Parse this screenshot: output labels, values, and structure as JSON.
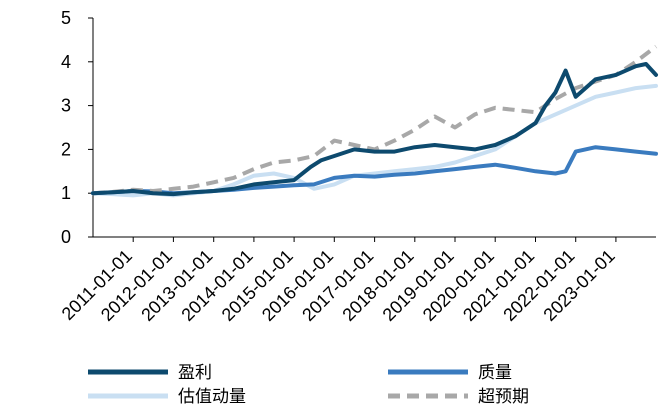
{
  "chart_data": {
    "type": "line",
    "title": "",
    "xlabel": "",
    "ylabel": "",
    "ylim": [
      0,
      5
    ],
    "yticks": [
      0,
      1,
      2,
      3,
      4,
      5
    ],
    "xticks": [
      "2011-01-01",
      "2012-01-01",
      "2013-01-01",
      "2014-01-01",
      "2015-01-01",
      "2016-01-01",
      "2017-01-01",
      "2018-01-01",
      "2019-01-01",
      "2020-01-01",
      "2021-01-01",
      "2022-01-01",
      "2023-01-01"
    ],
    "xlim": [
      "2010-01-01",
      "2023-12-31"
    ],
    "grid": false,
    "legend_position": "bottom",
    "series": [
      {
        "name": "盈利",
        "color": "#0d4a6e",
        "dash": "solid",
        "x": [
          "2010-01-01",
          "2010-07-01",
          "2011-01-01",
          "2011-07-01",
          "2012-01-01",
          "2012-07-01",
          "2013-01-01",
          "2013-07-01",
          "2014-01-01",
          "2014-07-01",
          "2015-01-01",
          "2015-06-01",
          "2015-09-01",
          "2016-01-01",
          "2016-07-01",
          "2017-01-01",
          "2017-07-01",
          "2018-01-01",
          "2018-07-01",
          "2019-01-01",
          "2019-07-01",
          "2020-01-01",
          "2020-07-01",
          "2021-01-01",
          "2021-04-01",
          "2021-07-01",
          "2021-10-01",
          "2022-01-01",
          "2022-07-01",
          "2023-01-01",
          "2023-07-01",
          "2023-10-01",
          "2023-12-31"
        ],
        "values": [
          1.0,
          1.02,
          1.05,
          1.0,
          0.98,
          1.02,
          1.05,
          1.1,
          1.2,
          1.25,
          1.3,
          1.6,
          1.75,
          1.85,
          2.0,
          1.95,
          1.95,
          2.05,
          2.1,
          2.05,
          2.0,
          2.1,
          2.3,
          2.6,
          3.0,
          3.3,
          3.8,
          3.2,
          3.6,
          3.7,
          3.9,
          3.95,
          3.7
        ]
      },
      {
        "name": "质量",
        "color": "#3a7bbf",
        "dash": "solid",
        "x": [
          "2010-01-01",
          "2010-07-01",
          "2011-01-01",
          "2011-07-01",
          "2012-01-01",
          "2012-07-01",
          "2013-01-01",
          "2013-07-01",
          "2014-01-01",
          "2014-07-01",
          "2015-01-01",
          "2015-07-01",
          "2016-01-01",
          "2016-07-01",
          "2017-01-01",
          "2017-07-01",
          "2018-01-01",
          "2018-07-01",
          "2019-01-01",
          "2019-07-01",
          "2020-01-01",
          "2020-07-01",
          "2021-01-01",
          "2021-07-01",
          "2021-10-01",
          "2022-01-01",
          "2022-07-01",
          "2023-01-01",
          "2023-07-01",
          "2023-12-31"
        ],
        "values": [
          1.0,
          1.02,
          1.05,
          1.04,
          1.0,
          1.02,
          1.05,
          1.08,
          1.12,
          1.15,
          1.18,
          1.2,
          1.35,
          1.4,
          1.38,
          1.42,
          1.45,
          1.5,
          1.55,
          1.6,
          1.65,
          1.58,
          1.5,
          1.45,
          1.5,
          1.95,
          2.05,
          2.0,
          1.95,
          1.9
        ]
      },
      {
        "name": "估值动量",
        "color": "#c9dff2",
        "dash": "solid",
        "x": [
          "2010-01-01",
          "2010-07-01",
          "2011-01-01",
          "2011-07-01",
          "2012-01-01",
          "2012-07-01",
          "2013-01-01",
          "2013-07-01",
          "2014-01-01",
          "2014-07-01",
          "2015-01-01",
          "2015-07-01",
          "2016-01-01",
          "2016-07-01",
          "2017-01-01",
          "2017-07-01",
          "2018-01-01",
          "2018-07-01",
          "2019-01-01",
          "2019-07-01",
          "2020-01-01",
          "2020-07-01",
          "2021-01-01",
          "2021-07-01",
          "2022-01-01",
          "2022-07-01",
          "2023-01-01",
          "2023-07-01",
          "2023-12-31"
        ],
        "values": [
          1.0,
          0.98,
          0.95,
          1.0,
          0.95,
          1.0,
          1.05,
          1.2,
          1.4,
          1.45,
          1.35,
          1.1,
          1.2,
          1.4,
          1.45,
          1.5,
          1.55,
          1.6,
          1.7,
          1.85,
          2.0,
          2.3,
          2.6,
          2.8,
          3.0,
          3.2,
          3.3,
          3.4,
          3.45
        ]
      },
      {
        "name": "超预期",
        "color": "#a8a8a8",
        "dash": "dashed",
        "x": [
          "2010-01-01",
          "2010-07-01",
          "2011-01-01",
          "2011-07-01",
          "2012-01-01",
          "2012-07-01",
          "2013-01-01",
          "2013-07-01",
          "2014-01-01",
          "2014-07-01",
          "2015-01-01",
          "2015-07-01",
          "2016-01-01",
          "2016-07-01",
          "2017-01-01",
          "2017-07-01",
          "2018-01-01",
          "2018-07-01",
          "2019-01-01",
          "2019-07-01",
          "2020-01-01",
          "2020-07-01",
          "2021-01-01",
          "2021-07-01",
          "2022-01-01",
          "2022-07-01",
          "2023-01-01",
          "2023-07-01",
          "2023-12-31"
        ],
        "values": [
          1.0,
          1.03,
          1.08,
          1.05,
          1.1,
          1.15,
          1.25,
          1.35,
          1.55,
          1.7,
          1.75,
          1.85,
          2.2,
          2.1,
          2.0,
          2.2,
          2.45,
          2.75,
          2.5,
          2.8,
          2.95,
          2.9,
          2.85,
          3.15,
          3.4,
          3.55,
          3.7,
          4.0,
          4.35
        ]
      }
    ]
  }
}
